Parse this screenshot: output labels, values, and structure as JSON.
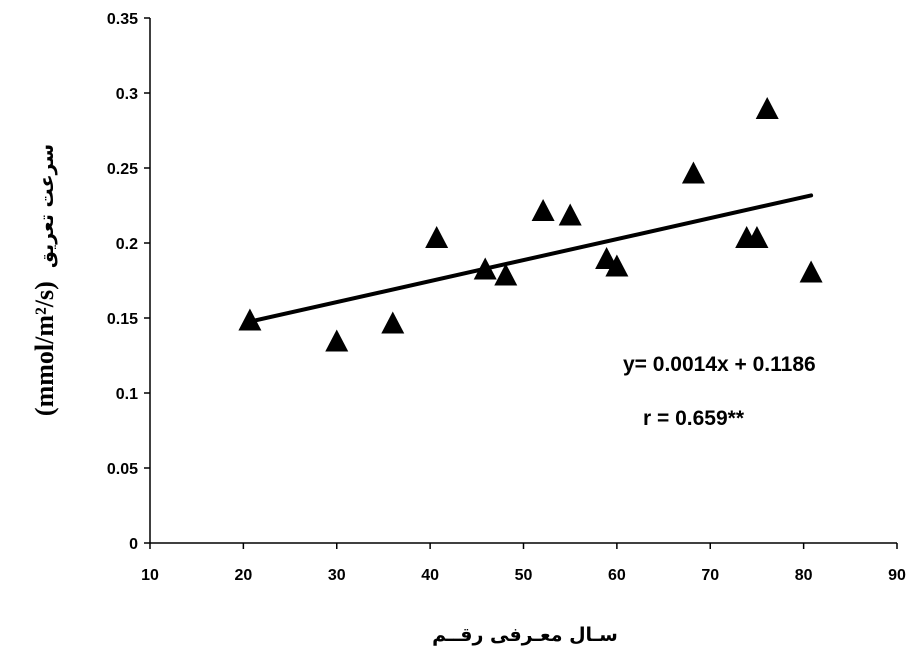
{
  "chart_data": {
    "type": "scatter",
    "xlabel": "سـال معـرفی رقــم",
    "ylabel": "سرعت تعریق",
    "ylabel_unit": "(mmol/m²/s)",
    "xlim": [
      10,
      90
    ],
    "ylim": [
      0,
      0.35
    ],
    "x_ticks": [
      10,
      20,
      30,
      40,
      50,
      60,
      70,
      80,
      90
    ],
    "x_tick_labels": [
      "10",
      "20",
      "30",
      "40",
      "50",
      "60",
      "70",
      "80",
      "90"
    ],
    "y_ticks": [
      0,
      0.05,
      0.1,
      0.15,
      0.2,
      0.25,
      0.3,
      0.35
    ],
    "y_tick_labels": [
      "0",
      "0.05",
      "0.1",
      "0.15",
      "0.2",
      "0.25",
      "0.3",
      "0.35"
    ],
    "grid": false,
    "marker": "triangle",
    "marker_color": "#000000",
    "points": [
      {
        "x": 20.7,
        "y": 0.149
      },
      {
        "x": 30.0,
        "y": 0.135
      },
      {
        "x": 36.0,
        "y": 0.147
      },
      {
        "x": 40.7,
        "y": 0.204
      },
      {
        "x": 45.9,
        "y": 0.183
      },
      {
        "x": 48.1,
        "y": 0.179
      },
      {
        "x": 52.1,
        "y": 0.222
      },
      {
        "x": 55.0,
        "y": 0.219
      },
      {
        "x": 58.9,
        "y": 0.19
      },
      {
        "x": 60.0,
        "y": 0.185
      },
      {
        "x": 68.2,
        "y": 0.247
      },
      {
        "x": 73.9,
        "y": 0.204
      },
      {
        "x": 75.0,
        "y": 0.204
      },
      {
        "x": 76.1,
        "y": 0.29
      },
      {
        "x": 80.8,
        "y": 0.181
      }
    ],
    "trendline": {
      "slope": 0.0014,
      "intercept": 0.1186,
      "x_start": 20.7,
      "x_end": 80.8,
      "color": "#000000"
    },
    "annotations": [
      "y= 0.0014x + 0.1186",
      "r = 0.659**"
    ]
  }
}
